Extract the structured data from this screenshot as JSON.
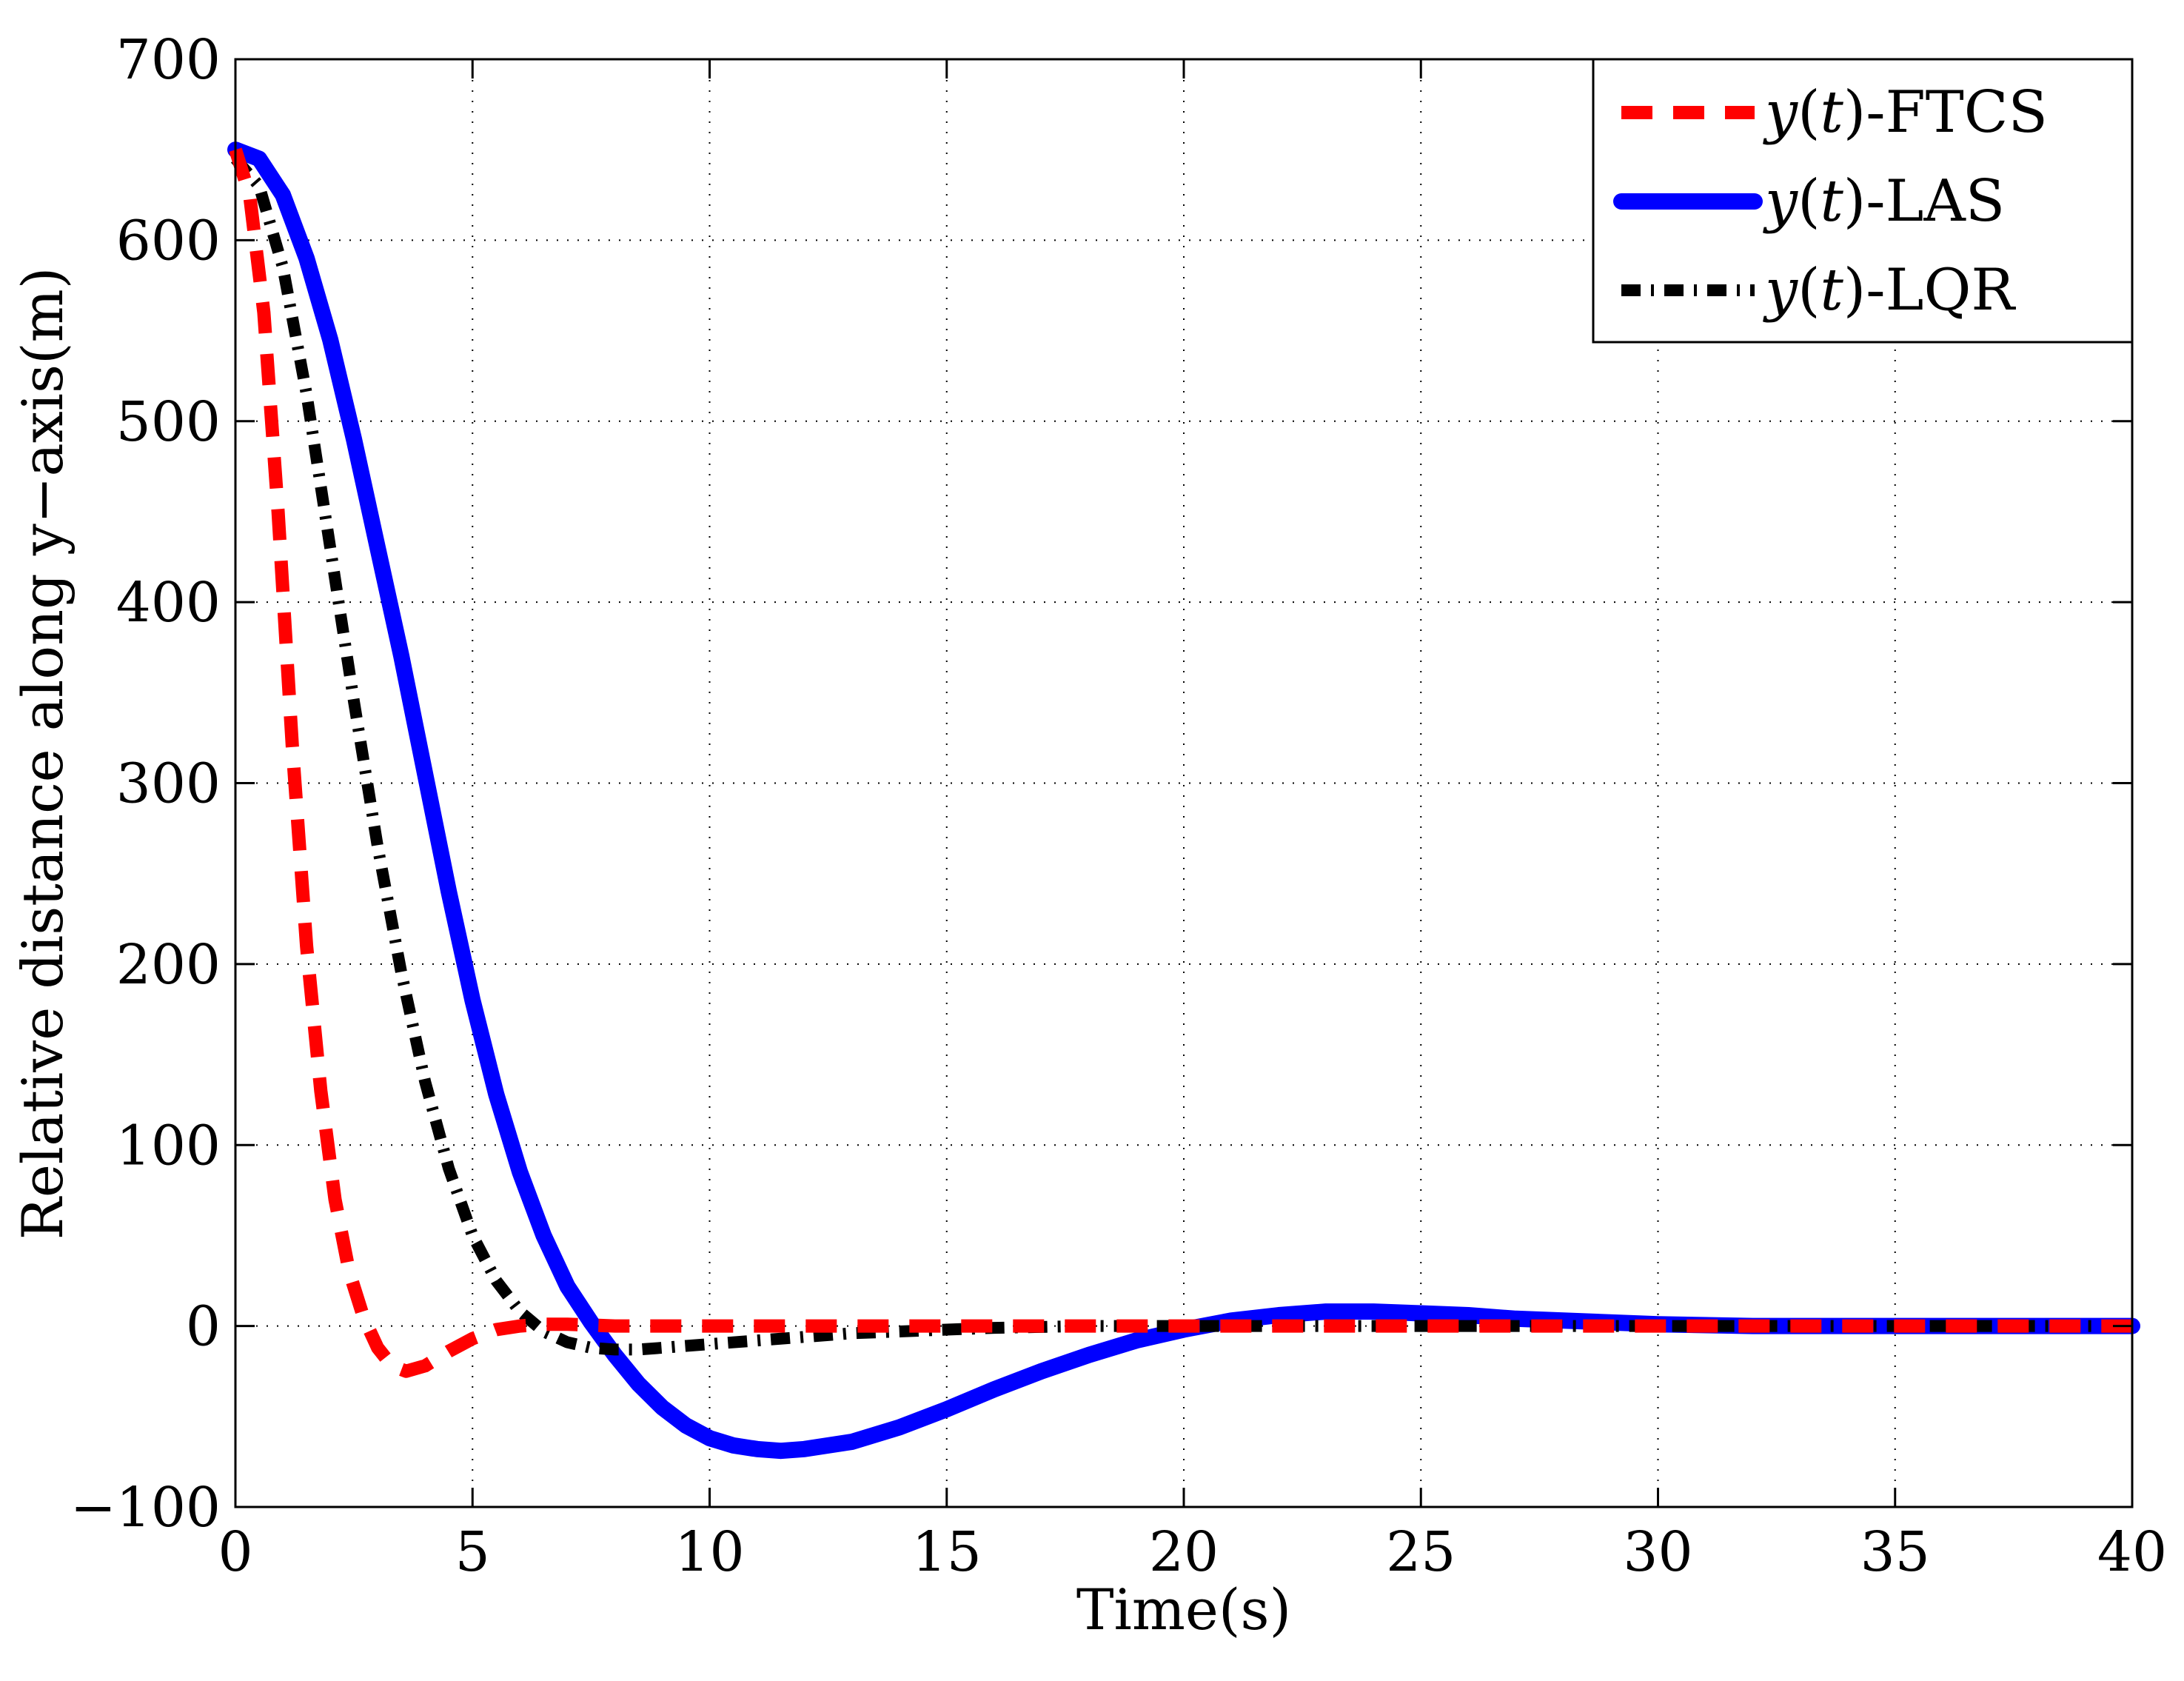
{
  "chart_data": {
    "type": "line",
    "title": "",
    "xlabel": "Time(s)",
    "ylabel": "Relative distance along y−axis(m)",
    "xlim": [
      0,
      40
    ],
    "ylim": [
      -100,
      700
    ],
    "xticks": [
      0,
      5,
      10,
      15,
      20,
      25,
      30,
      35,
      40
    ],
    "xtick_labels": [
      "0",
      "5",
      "10",
      "15",
      "20",
      "25",
      "30",
      "35",
      "40"
    ],
    "yticks": [
      -100,
      0,
      100,
      200,
      300,
      400,
      500,
      600,
      700
    ],
    "ytick_labels": [
      "−100",
      "0",
      "100",
      "200",
      "300",
      "400",
      "500",
      "600",
      "700"
    ],
    "grid": true,
    "legend_position": "top-right",
    "series": [
      {
        "name": "FTCS",
        "legend_label": {
          "math_prefix": "y(",
          "math_var": "t",
          "math_suffix": ")",
          "text": "-FTCS"
        },
        "color": "#ff0000",
        "style": "dashed",
        "x": [
          0,
          0.3,
          0.6,
          0.9,
          1.2,
          1.5,
          1.8,
          2.1,
          2.4,
          2.7,
          3.0,
          3.3,
          3.6,
          4.0,
          4.5,
          5.0,
          5.5,
          6.0,
          6.5,
          7.0,
          8.0,
          10,
          15,
          20,
          25,
          30,
          35,
          40
        ],
        "y": [
          650,
          625,
          560,
          450,
          320,
          210,
          130,
          70,
          30,
          5,
          -12,
          -22,
          -25,
          -22,
          -14,
          -7,
          -2,
          0,
          1,
          1,
          0,
          0,
          0,
          0,
          0,
          0,
          0,
          0
        ]
      },
      {
        "name": "LAS",
        "legend_label": {
          "math_prefix": "y(",
          "math_var": "t",
          "math_suffix": ")",
          "text": "-LAS"
        },
        "color": "#0000ff",
        "style": "solid",
        "x": [
          0,
          0.5,
          1.0,
          1.5,
          2.0,
          2.5,
          3.0,
          3.5,
          4.0,
          4.5,
          5.0,
          5.5,
          6.0,
          6.5,
          7.0,
          7.5,
          8.0,
          8.5,
          9.0,
          9.5,
          10,
          10.5,
          11,
          11.5,
          12,
          13,
          14,
          15,
          16,
          17,
          18,
          19,
          20,
          21,
          22,
          23,
          24,
          25,
          26,
          27,
          28,
          30,
          32,
          35,
          40
        ],
        "y": [
          650,
          645,
          625,
          590,
          545,
          490,
          430,
          370,
          305,
          240,
          180,
          128,
          85,
          50,
          22,
          2,
          -16,
          -32,
          -45,
          -55,
          -62,
          -66,
          -68,
          -69,
          -68,
          -64,
          -56,
          -46,
          -35,
          -25,
          -16,
          -8,
          -2,
          3,
          6,
          8,
          8,
          7,
          6,
          4,
          3,
          1,
          0,
          0,
          0
        ]
      },
      {
        "name": "LQR",
        "legend_label": {
          "math_prefix": "y(",
          "math_var": "t",
          "math_suffix": ")",
          "text": "-LQR"
        },
        "color": "#000000",
        "style": "dashdot",
        "x": [
          0,
          0.5,
          1.0,
          1.5,
          2.0,
          2.5,
          3.0,
          3.5,
          4.0,
          4.5,
          5.0,
          5.5,
          6.0,
          6.5,
          7.0,
          7.5,
          8.0,
          8.5,
          9.0,
          9.5,
          10,
          11,
          12,
          13,
          14,
          15,
          16,
          18,
          20,
          25,
          30,
          40
        ],
        "y": [
          645,
          630,
          585,
          515,
          430,
          345,
          265,
          195,
          135,
          87,
          50,
          25,
          8,
          -3,
          -9,
          -12,
          -13,
          -13,
          -12,
          -11,
          -10,
          -8,
          -6,
          -4,
          -3,
          -2,
          -1,
          0,
          0,
          0,
          0,
          0
        ]
      }
    ]
  }
}
